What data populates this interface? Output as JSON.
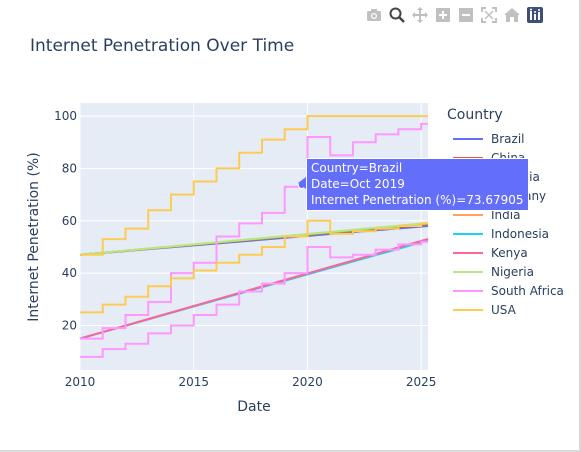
{
  "modebar": {
    "icons": [
      "camera-icon",
      "zoom-icon",
      "pan-icon",
      "zoom-in-icon",
      "zoom-out-icon",
      "autoscale-icon",
      "reset-axes-icon",
      "plotly-logo-icon"
    ]
  },
  "tooltip": {
    "line1": "Country=Brazil",
    "line2": "Date=Oct 2019",
    "line3": "Internet Penetration (%)=73.67905"
  },
  "chart_data": {
    "type": "line",
    "title": "Internet Penetration Over Time",
    "xlabel": "Date",
    "ylabel": "Internet Penetration (%)",
    "xlim": [
      2010,
      2025.3
    ],
    "ylim": [
      3,
      105
    ],
    "x_ticks": [
      "2010",
      "2015",
      "2020",
      "2025"
    ],
    "x_tick_values": [
      2010,
      2015,
      2020,
      2025
    ],
    "y_ticks": [
      "20",
      "40",
      "60",
      "80",
      "100"
    ],
    "y_tick_values": [
      20,
      40,
      60,
      80,
      100
    ],
    "grid": true,
    "plot_background": "#e5ecf6",
    "legend_title": "Country",
    "legend_position": "right",
    "series": [
      {
        "name": "Brazil",
        "color": "#636efa",
        "x": [
          2010,
          2025.3
        ],
        "y": [
          47,
          58
        ]
      },
      {
        "name": "China",
        "color": "#ef553b",
        "x": [
          2010,
          2025.3
        ],
        "y": [
          47,
          58.5
        ]
      },
      {
        "name": "Ethiopia",
        "color": "#00cc96",
        "x": [
          2010,
          2025.3
        ],
        "y": [
          47,
          58.8
        ]
      },
      {
        "name": "Germany",
        "color": "#ab63fa",
        "x": [
          2010,
          2025.3
        ],
        "y": [
          15,
          53
        ]
      },
      {
        "name": "India",
        "color": "#ffa15a",
        "x": [
          2010,
          2025.3
        ],
        "y": [
          47,
          59
        ]
      },
      {
        "name": "Indonesia",
        "color": "#19d3f3",
        "x": [
          2010,
          2025.3
        ],
        "y": [
          15,
          52.5
        ]
      },
      {
        "name": "Kenya",
        "color": "#ff6692",
        "x": [
          2010,
          2025.3
        ],
        "y": [
          15,
          53
        ]
      },
      {
        "name": "Nigeria",
        "color": "#b6e880",
        "x": [
          2010,
          2025.3
        ],
        "y": [
          47,
          59.2
        ]
      },
      {
        "name": "South Africa",
        "color": "#ff97ff",
        "x": [
          2010,
          2011,
          2011,
          2012,
          2012,
          2013,
          2013,
          2014,
          2014,
          2015,
          2015,
          2016,
          2016,
          2017,
          2017,
          2018,
          2018,
          2019,
          2019,
          2020,
          2020,
          2021,
          2021,
          2022,
          2022,
          2023,
          2023,
          2024,
          2024,
          2025,
          2025,
          2025.3
        ],
        "y": [
          15,
          15,
          19,
          19,
          24,
          24,
          29,
          29,
          40,
          40,
          44,
          44,
          54,
          54,
          59,
          59,
          63,
          63,
          73,
          73,
          92,
          92,
          85,
          85,
          90,
          90,
          93,
          93,
          95,
          95,
          97,
          97
        ]
      },
      {
        "name": "USA",
        "color": "#fecb52",
        "x": [
          2010,
          2011,
          2011,
          2012,
          2012,
          2013,
          2013,
          2014,
          2014,
          2015,
          2015,
          2016,
          2016,
          2017,
          2017,
          2018,
          2018,
          2019,
          2019,
          2020,
          2020,
          2025.3
        ],
        "y": [
          47,
          47,
          53,
          53,
          57,
          57,
          64,
          64,
          70,
          70,
          75,
          75,
          80,
          80,
          86,
          86,
          91,
          91,
          95,
          95,
          100,
          100
        ]
      },
      {
        "name": "",
        "color": "#ff97ff",
        "x": [
          2010,
          2011,
          2011,
          2012,
          2012,
          2013,
          2013,
          2014,
          2014,
          2015,
          2015,
          2016,
          2016,
          2017,
          2017,
          2018,
          2018,
          2019,
          2019,
          2020,
          2020,
          2021,
          2021,
          2022,
          2022,
          2023,
          2023,
          2024,
          2024,
          2025,
          2025,
          2025.3
        ],
        "y": [
          8,
          8,
          11,
          11,
          13,
          13,
          17,
          17,
          20,
          20,
          24,
          24,
          28,
          28,
          33,
          33,
          36,
          36,
          40,
          40,
          50,
          50,
          46,
          46,
          47,
          47,
          49,
          49,
          51,
          51,
          52,
          52
        ]
      },
      {
        "name": "",
        "color": "#fecb52",
        "x": [
          2010,
          2011,
          2011,
          2012,
          2012,
          2013,
          2013,
          2014,
          2014,
          2015,
          2015,
          2016,
          2016,
          2017,
          2017,
          2018,
          2018,
          2019,
          2019,
          2020,
          2020,
          2021,
          2021,
          2022,
          2022,
          2023,
          2023,
          2024,
          2024,
          2025,
          2025,
          2025.3
        ],
        "y": [
          25,
          25,
          28,
          28,
          31,
          31,
          35,
          35,
          38,
          38,
          41,
          41,
          44,
          44,
          47,
          47,
          50,
          50,
          54,
          54,
          60,
          60,
          55,
          55,
          56,
          56,
          57,
          57,
          58,
          58,
          59,
          59
        ]
      }
    ],
    "legend_entries": [
      "Brazil",
      "China",
      "Ethiopia",
      "Germany",
      "India",
      "Indonesia",
      "Kenya",
      "Nigeria",
      "South Africa",
      "USA"
    ]
  }
}
